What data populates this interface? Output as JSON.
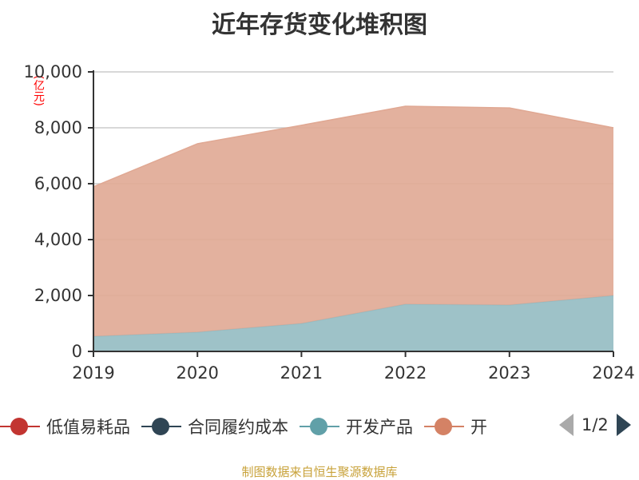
{
  "chart_data": {
    "type": "area",
    "title": "近年存货变化堆积图",
    "ylabel": "(亿元)",
    "categories": [
      "2019",
      "2020",
      "2021",
      "2022",
      "2023",
      "2024"
    ],
    "ylim": [
      0,
      10000
    ],
    "yticks": [
      "0",
      "2,000",
      "4,000",
      "6,000",
      "8,000",
      "10,000"
    ],
    "stacked": true,
    "series": [
      {
        "name": "低值易耗品",
        "color": "#c23531",
        "values": [
          0,
          0,
          0,
          0,
          0,
          0
        ]
      },
      {
        "name": "合同履约成本",
        "color": "#2f4554",
        "values": [
          0,
          0,
          0,
          0,
          0,
          0
        ]
      },
      {
        "name": "开发产品",
        "color": "#61a0a8",
        "values": [
          540,
          690,
          1000,
          1690,
          1660,
          2000
        ]
      },
      {
        "name": "开",
        "color": "#d48265",
        "values": [
          5350,
          6740,
          7090,
          7080,
          7050,
          6000
        ]
      }
    ],
    "legend_page": "1/2"
  },
  "source": "制图数据来自恒生聚源数据库"
}
